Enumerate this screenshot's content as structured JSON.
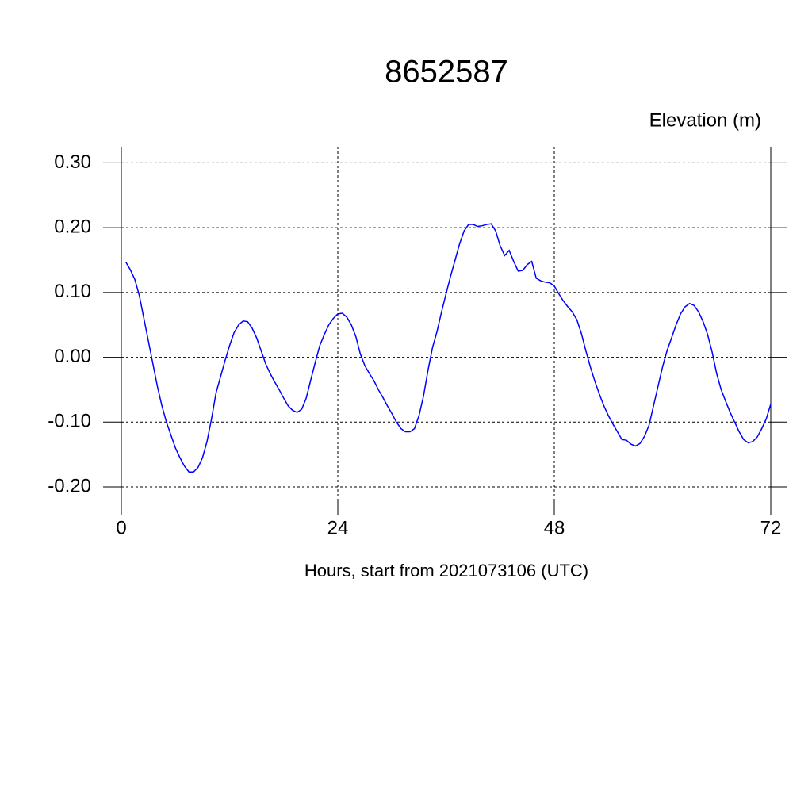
{
  "chart_data": {
    "type": "line",
    "title": "8652587",
    "ylabel": "Elevation (m)",
    "xlabel": "Hours, start from 2021073106 (UTC)",
    "x": [
      0.5,
      1,
      1.5,
      2,
      2.5,
      3,
      3.5,
      4,
      4.5,
      5,
      5.5,
      6,
      6.5,
      7,
      7.5,
      8,
      8.5,
      9,
      9.5,
      10,
      10.5,
      11,
      11.5,
      12,
      12.5,
      13,
      13.5,
      14,
      14.5,
      15,
      15.5,
      16,
      16.5,
      17,
      17.5,
      18,
      18.5,
      19,
      19.5,
      20,
      20.5,
      21,
      21.5,
      22,
      22.5,
      23,
      23.5,
      24,
      24.5,
      25,
      25.5,
      26,
      26.5,
      27,
      27.5,
      28,
      28.5,
      29,
      29.5,
      30,
      30.5,
      31,
      31.5,
      32,
      32.5,
      33,
      33.5,
      34,
      34.5,
      35,
      35.5,
      36,
      36.5,
      37,
      37.5,
      38,
      38.5,
      39,
      39.5,
      40,
      40.5,
      41,
      41.5,
      42,
      42.5,
      43,
      43.5,
      44,
      44.5,
      45,
      45.5,
      46,
      46.5,
      47,
      47.5,
      48,
      48.5,
      49,
      49.5,
      50,
      50.5,
      51,
      51.5,
      52,
      52.5,
      53,
      53.5,
      54,
      54.5,
      55,
      55.5,
      56,
      56.5,
      57,
      57.5,
      58,
      58.5,
      59,
      59.5,
      60,
      60.5,
      61,
      61.5,
      62,
      62.5,
      63,
      63.5,
      64,
      64.5,
      65,
      65.5,
      66,
      66.5,
      67,
      67.5,
      68,
      68.5,
      69,
      69.5,
      70,
      70.5,
      71,
      71.5,
      72
    ],
    "series": [
      {
        "name": "Elevation",
        "color": "#0000ff",
        "values": [
          0.147,
          0.135,
          0.12,
          0.095,
          0.06,
          0.025,
          -0.01,
          -0.045,
          -0.075,
          -0.1,
          -0.12,
          -0.14,
          -0.155,
          -0.168,
          -0.177,
          -0.177,
          -0.17,
          -0.155,
          -0.13,
          -0.095,
          -0.055,
          -0.03,
          -0.005,
          0.018,
          0.038,
          0.05,
          0.056,
          0.055,
          0.045,
          0.03,
          0.01,
          -0.01,
          -0.025,
          -0.038,
          -0.05,
          -0.063,
          -0.075,
          -0.082,
          -0.085,
          -0.08,
          -0.063,
          -0.035,
          -0.008,
          0.018,
          0.035,
          0.05,
          0.06,
          0.067,
          0.068,
          0.062,
          0.05,
          0.032,
          0.005,
          -0.013,
          -0.025,
          -0.036,
          -0.05,
          -0.062,
          -0.075,
          -0.087,
          -0.1,
          -0.11,
          -0.115,
          -0.115,
          -0.11,
          -0.09,
          -0.06,
          -0.02,
          0.015,
          0.04,
          0.07,
          0.098,
          0.125,
          0.15,
          0.175,
          0.195,
          0.205,
          0.205,
          0.202,
          0.203,
          0.205,
          0.206,
          0.195,
          0.172,
          0.157,
          0.165,
          0.148,
          0.133,
          0.134,
          0.143,
          0.148,
          0.122,
          0.118,
          0.116,
          0.115,
          0.11,
          0.098,
          0.087,
          0.078,
          0.07,
          0.058,
          0.037,
          0.01,
          -0.015,
          -0.037,
          -0.057,
          -0.075,
          -0.09,
          -0.103,
          -0.115,
          -0.127,
          -0.128,
          -0.134,
          -0.137,
          -0.133,
          -0.122,
          -0.105,
          -0.075,
          -0.045,
          -0.015,
          0.01,
          0.03,
          0.05,
          0.067,
          0.078,
          0.083,
          0.08,
          0.07,
          0.055,
          0.035,
          0.008,
          -0.025,
          -0.05,
          -0.068,
          -0.085,
          -0.1,
          -0.115,
          -0.127,
          -0.132,
          -0.13,
          -0.123,
          -0.11,
          -0.095,
          -0.072
        ]
      }
    ],
    "xlim": [
      0,
      72
    ],
    "xticks": [
      0,
      24,
      48,
      72
    ],
    "ylim": [
      -0.222,
      0.325
    ],
    "yticks": [
      {
        "value": 0.3,
        "label": "0.30"
      },
      {
        "value": 0.2,
        "label": "0.20"
      },
      {
        "value": 0.1,
        "label": "0.10"
      },
      {
        "value": 0,
        "label": "0.00"
      },
      {
        "value": -0.1,
        "label": "-0.10"
      },
      {
        "value": -0.2,
        "label": "-0.20"
      }
    ],
    "grid": true
  }
}
